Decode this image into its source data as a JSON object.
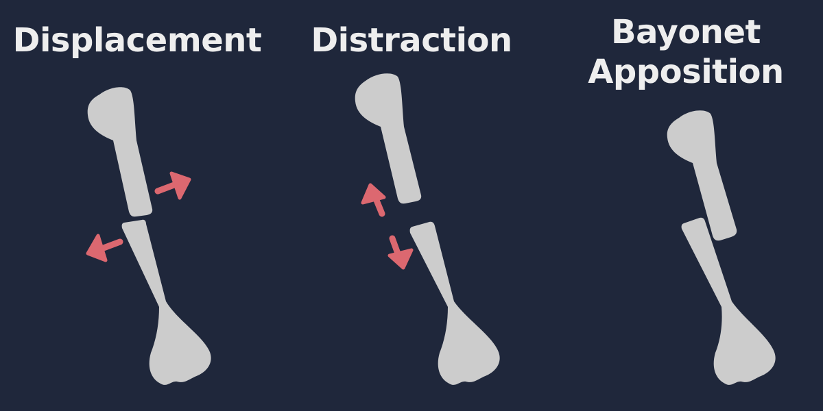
{
  "panels": [
    {
      "id": "displacement",
      "title_lines": [
        "Displacement"
      ]
    },
    {
      "id": "distraction",
      "title_lines": [
        "Distraction"
      ]
    },
    {
      "id": "bayonet-apposition",
      "title_lines": [
        "Bayonet",
        "Apposition"
      ]
    }
  ],
  "colors": {
    "background": "#1f273b",
    "bone": "#cccccc",
    "arrow": "#dc6870",
    "title": "#eeeeee"
  }
}
